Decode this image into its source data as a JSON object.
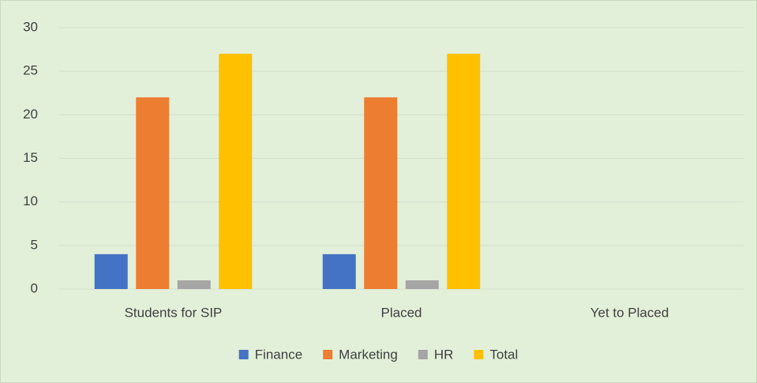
{
  "chart_data": {
    "type": "bar",
    "categories": [
      "Students for SIP",
      "Placed",
      "Yet to Placed"
    ],
    "series": [
      {
        "name": "Finance",
        "color": "#4472c4",
        "values": [
          4,
          4,
          0
        ]
      },
      {
        "name": "Marketing",
        "color": "#ed7d31",
        "values": [
          22,
          22,
          0
        ]
      },
      {
        "name": "HR",
        "color": "#a5a5a5",
        "values": [
          1,
          1,
          0
        ]
      },
      {
        "name": "Total",
        "color": "#ffc000",
        "values": [
          27,
          27,
          0
        ]
      }
    ],
    "ylim": [
      0,
      30
    ],
    "yticks": [
      0,
      5,
      10,
      15,
      20,
      25,
      30
    ],
    "grid": true,
    "legend": "bottom"
  }
}
